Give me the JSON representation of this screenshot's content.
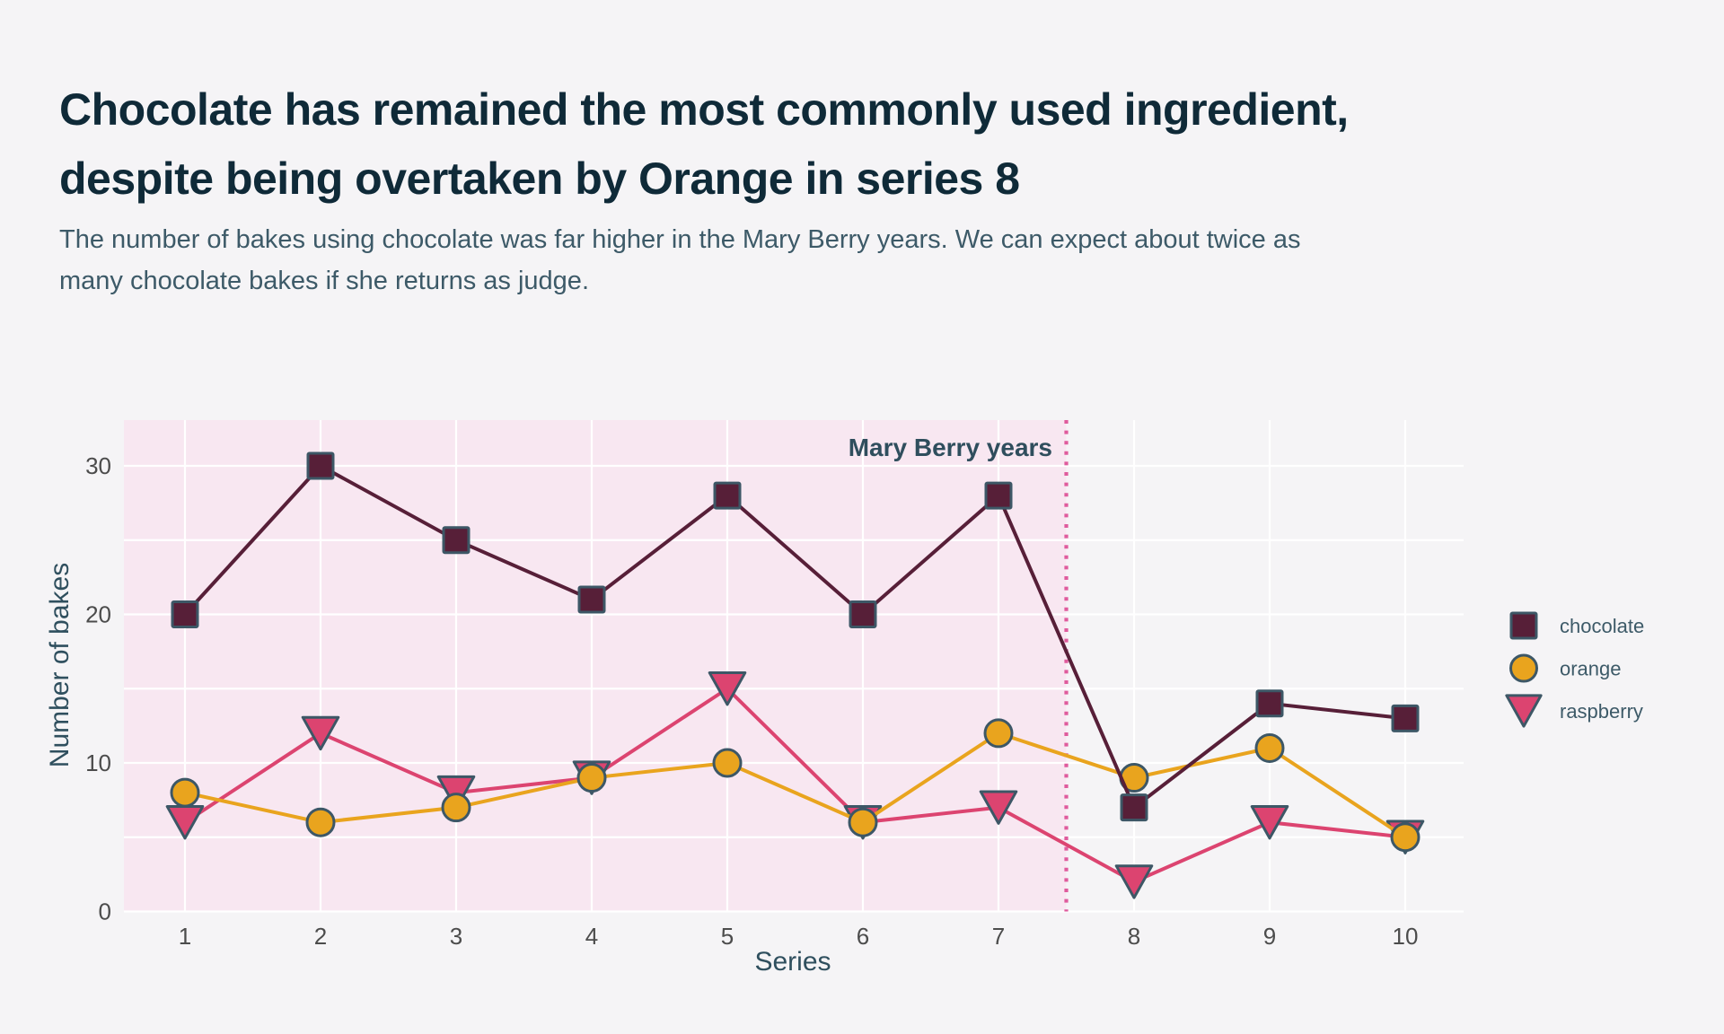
{
  "page": {
    "background": "#f5f4f6",
    "title_lines": [
      "Chocolate has remained the most commonly used ingredient,",
      "despite being overtaken by Orange in series 8"
    ],
    "subtitle_lines": [
      "The number of bakes using chocolate was far higher in the Mary Berry years. We can expect about twice as",
      "many chocolate bakes if she returns as judge."
    ]
  },
  "colors": {
    "title": "#0f2a38",
    "subtitle": "#3d5a68",
    "background": "#f5f4f6",
    "gridline": "#ffffff",
    "marker_border": "#3d5766",
    "region_fill": "#f8e7f1",
    "divider": "#df5b9d",
    "tick_label": "#4c4c4c",
    "axis_title": "#2f4f5e"
  },
  "chart_data": {
    "type": "line",
    "x": [
      1,
      2,
      3,
      4,
      5,
      6,
      7,
      8,
      9,
      10
    ],
    "series": [
      {
        "name": "chocolate",
        "marker": "square",
        "color": "#571f38",
        "values": [
          20,
          30,
          25,
          21,
          28,
          20,
          28,
          7,
          14,
          13
        ]
      },
      {
        "name": "orange",
        "marker": "circle",
        "color": "#e9a41e",
        "values": [
          8,
          6,
          7,
          9,
          10,
          6,
          12,
          9,
          11,
          5
        ]
      },
      {
        "name": "raspberry",
        "marker": "triangle-down",
        "color": "#dc4470",
        "values": [
          6,
          12,
          8,
          9,
          15,
          6,
          7,
          2,
          6,
          5
        ]
      }
    ],
    "xlabel": "Series",
    "ylabel": "Number of bakes",
    "x_ticks": [
      1,
      2,
      3,
      4,
      5,
      6,
      7,
      8,
      9,
      10
    ],
    "y_ticks": [
      0,
      10,
      20,
      30
    ],
    "y_gridlines": [
      0,
      5,
      10,
      15,
      20,
      25,
      30
    ],
    "xlim": [
      0.55,
      10.45
    ],
    "ylim": [
      0,
      33.1
    ],
    "grid": true,
    "legend_position": "right",
    "annotation": {
      "text": "Mary Berry years"
    },
    "region": {
      "label": "Mary Berry years",
      "x_start": 0.55,
      "x_end": 7.5
    }
  }
}
